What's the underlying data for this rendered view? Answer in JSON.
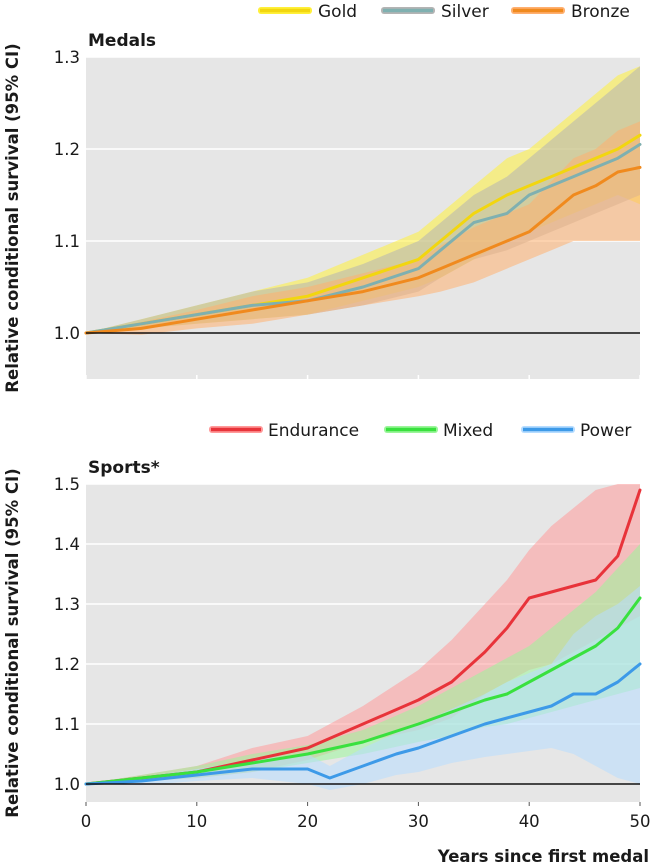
{
  "chart_data": [
    {
      "type": "line",
      "title": "Medals",
      "ylabel": "Relative conditional survival (95% CI)",
      "xlabel": "",
      "xlim": [
        0,
        50
      ],
      "ylim": [
        0.95,
        1.3
      ],
      "yticks": [
        "1.0",
        "1.1",
        "1.2",
        "1.3"
      ],
      "reference_line": 1.0,
      "grid": "horizontal",
      "legend_position": "top-right",
      "series": [
        {
          "name": "Gold",
          "color": "#f2d60f",
          "band_color": "#fff03a",
          "x": [
            0,
            5,
            10,
            15,
            20,
            25,
            30,
            32,
            35,
            38,
            40,
            42,
            44,
            46,
            48,
            50
          ],
          "values": [
            1.0,
            1.01,
            1.02,
            1.03,
            1.04,
            1.06,
            1.08,
            1.1,
            1.13,
            1.15,
            1.16,
            1.17,
            1.18,
            1.19,
            1.2,
            1.215
          ],
          "lower": [
            1.0,
            1.005,
            1.01,
            1.015,
            1.02,
            1.035,
            1.05,
            1.06,
            1.08,
            1.1,
            1.11,
            1.12,
            1.13,
            1.14,
            1.15,
            1.14
          ],
          "upper": [
            1.0,
            1.015,
            1.03,
            1.045,
            1.06,
            1.085,
            1.11,
            1.13,
            1.16,
            1.19,
            1.2,
            1.22,
            1.24,
            1.26,
            1.28,
            1.29
          ]
        },
        {
          "name": "Silver",
          "color": "#7fb0b0",
          "band_color": "#b4b4b4",
          "x": [
            0,
            5,
            10,
            15,
            20,
            25,
            30,
            32,
            35,
            38,
            40,
            42,
            44,
            46,
            48,
            50
          ],
          "values": [
            1.0,
            1.01,
            1.02,
            1.03,
            1.035,
            1.05,
            1.07,
            1.09,
            1.12,
            1.13,
            1.15,
            1.16,
            1.17,
            1.18,
            1.19,
            1.205
          ],
          "lower": [
            1.0,
            1.005,
            1.01,
            1.015,
            1.02,
            1.03,
            1.045,
            1.06,
            1.08,
            1.09,
            1.1,
            1.11,
            1.12,
            1.13,
            1.14,
            1.15
          ],
          "upper": [
            1.0,
            1.015,
            1.03,
            1.045,
            1.055,
            1.075,
            1.1,
            1.12,
            1.15,
            1.17,
            1.19,
            1.21,
            1.23,
            1.25,
            1.27,
            1.29
          ]
        },
        {
          "name": "Bronze",
          "color": "#f08a1e",
          "band_color": "#ffb070",
          "x": [
            0,
            5,
            10,
            15,
            20,
            25,
            30,
            32,
            35,
            38,
            40,
            42,
            44,
            46,
            48,
            50
          ],
          "values": [
            1.0,
            1.005,
            1.015,
            1.025,
            1.035,
            1.045,
            1.06,
            1.07,
            1.085,
            1.1,
            1.11,
            1.13,
            1.15,
            1.16,
            1.175,
            1.18
          ],
          "lower": [
            1.0,
            0.998,
            1.005,
            1.01,
            1.02,
            1.03,
            1.04,
            1.045,
            1.055,
            1.07,
            1.08,
            1.09,
            1.1,
            1.1,
            1.1,
            1.1
          ],
          "upper": [
            1.0,
            1.012,
            1.025,
            1.04,
            1.05,
            1.065,
            1.08,
            1.095,
            1.115,
            1.13,
            1.14,
            1.165,
            1.19,
            1.2,
            1.22,
            1.23
          ]
        }
      ]
    },
    {
      "type": "line",
      "title": "Sports*",
      "ylabel": "Relative conditional survival (95% CI)",
      "xlabel": "Years since first medal",
      "xlim": [
        0,
        50
      ],
      "ylim": [
        0.97,
        1.5
      ],
      "xticks": [
        "0",
        "10",
        "20",
        "30",
        "40",
        "50"
      ],
      "yticks": [
        "1.0",
        "1.1",
        "1.2",
        "1.3",
        "1.4",
        "1.5"
      ],
      "reference_line": 1.0,
      "grid": "horizontal",
      "legend_position": "top-right",
      "series": [
        {
          "name": "Endurance",
          "color": "#e8333a",
          "band_color": "#ff9a9a",
          "x": [
            0,
            5,
            10,
            15,
            20,
            25,
            30,
            33,
            36,
            38,
            40,
            42,
            44,
            46,
            48,
            50
          ],
          "values": [
            1.0,
            1.01,
            1.02,
            1.04,
            1.06,
            1.1,
            1.14,
            1.17,
            1.22,
            1.26,
            1.31,
            1.32,
            1.33,
            1.34,
            1.38,
            1.49
          ],
          "lower": [
            1.0,
            1.005,
            1.01,
            1.02,
            1.04,
            1.07,
            1.09,
            1.11,
            1.15,
            1.17,
            1.19,
            1.2,
            1.22,
            1.24,
            1.26,
            1.28
          ],
          "upper": [
            1.0,
            1.015,
            1.03,
            1.06,
            1.08,
            1.13,
            1.19,
            1.24,
            1.3,
            1.34,
            1.39,
            1.43,
            1.46,
            1.49,
            1.5,
            1.5
          ]
        },
        {
          "name": "Mixed",
          "color": "#39e13e",
          "band_color": "#9bf59a",
          "x": [
            0,
            5,
            10,
            15,
            20,
            25,
            30,
            33,
            36,
            38,
            40,
            42,
            44,
            46,
            48,
            50
          ],
          "values": [
            1.0,
            1.01,
            1.02,
            1.035,
            1.05,
            1.07,
            1.1,
            1.12,
            1.14,
            1.15,
            1.17,
            1.19,
            1.21,
            1.23,
            1.26,
            1.31
          ],
          "lower": [
            1.0,
            1.005,
            1.01,
            1.02,
            1.035,
            1.05,
            1.07,
            1.08,
            1.095,
            1.1,
            1.11,
            1.12,
            1.13,
            1.14,
            1.15,
            1.16
          ],
          "upper": [
            1.0,
            1.015,
            1.03,
            1.05,
            1.065,
            1.09,
            1.13,
            1.16,
            1.19,
            1.21,
            1.23,
            1.26,
            1.29,
            1.32,
            1.36,
            1.4
          ]
        },
        {
          "name": "Power",
          "color": "#3d9ae8",
          "band_color": "#b6dcff",
          "x": [
            0,
            5,
            10,
            15,
            20,
            22,
            25,
            28,
            30,
            33,
            36,
            38,
            40,
            42,
            44,
            46,
            48,
            50
          ],
          "values": [
            1.0,
            1.005,
            1.015,
            1.025,
            1.025,
            1.01,
            1.03,
            1.05,
            1.06,
            1.08,
            1.1,
            1.11,
            1.12,
            1.13,
            1.15,
            1.15,
            1.17,
            1.2
          ],
          "lower": [
            1.0,
            0.998,
            1.005,
            1.01,
            1.0,
            0.99,
            1.0,
            1.015,
            1.02,
            1.035,
            1.045,
            1.05,
            1.055,
            1.06,
            1.05,
            1.03,
            1.01,
            1.0
          ],
          "upper": [
            1.0,
            1.012,
            1.025,
            1.04,
            1.05,
            1.03,
            1.06,
            1.085,
            1.1,
            1.125,
            1.15,
            1.17,
            1.185,
            1.2,
            1.25,
            1.28,
            1.3,
            1.33
          ]
        }
      ]
    }
  ]
}
